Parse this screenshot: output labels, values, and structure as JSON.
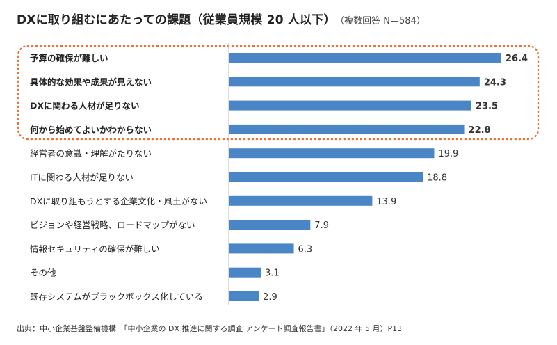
{
  "title": "DXに取り組むにあたっての課題（従業員規模 20 人以下）",
  "subtitle": "（複数回答 N＝584）",
  "source": "出典：中小企業基盤整備機構　「中小企業の DX 推進に関する調査 アンケート調査報告書」（2022 年 5 月）P13",
  "colors": {
    "bar": "#4a86c6",
    "highlight": "#e8743b",
    "axis": "#bbbbbb",
    "text": "#222222"
  },
  "chart_data": {
    "type": "bar",
    "orientation": "horizontal",
    "title": "DXに取り組むにあたっての課題（従業員規模 20 人以下）",
    "xlabel": "",
    "ylabel": "",
    "xlim": [
      0,
      26.4
    ],
    "grid": false,
    "highlighted_count": 4,
    "categories": [
      "予算の確保が難しい",
      "具体的な効果や成果が見えない",
      "DXに関わる人材が足りない",
      "何から始めてよいかわからない",
      "経営者の意識・理解がたりない",
      "ITに関わる人材が足りない",
      "DXに取り組もうとする企業文化・風土がない",
      "ビジョンや経営戦略、ロードマップがない",
      "情報セキュリティの確保が難しい",
      "その他",
      "既存システムがブラックボックス化している"
    ],
    "values": [
      26.4,
      24.3,
      23.5,
      22.8,
      19.9,
      18.8,
      13.9,
      7.9,
      6.3,
      3.1,
      2.9
    ],
    "value_labels": [
      "26.4",
      "24.3",
      "23.5",
      "22.8",
      "19.9",
      "18.8",
      "13.9",
      "7.9",
      "6.3",
      "3.1",
      "2.9"
    ]
  }
}
